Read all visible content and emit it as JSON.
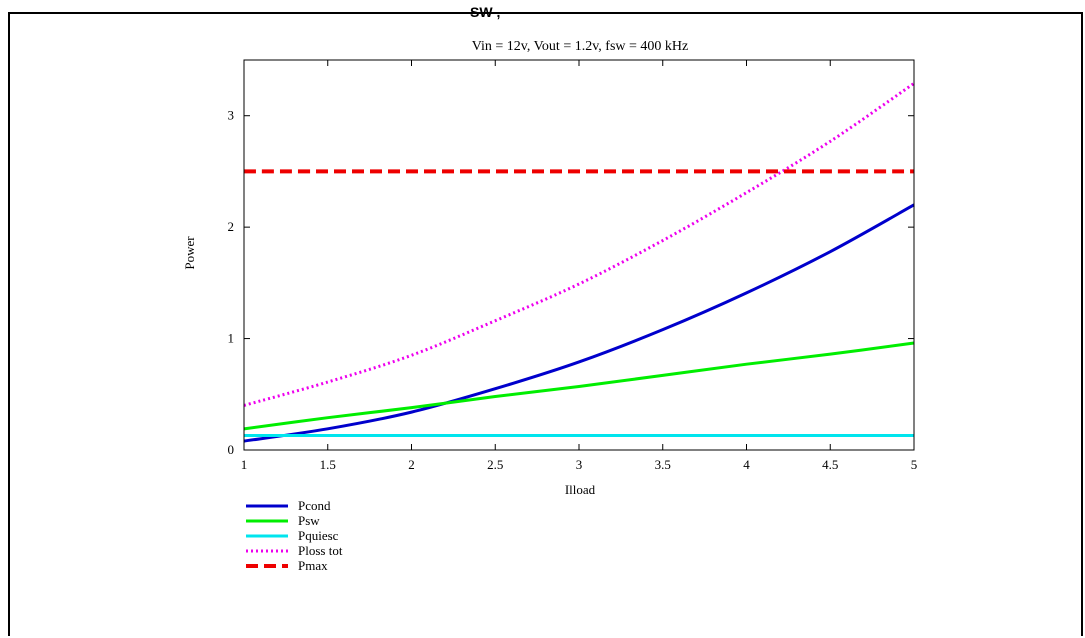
{
  "clipped_heading": "SW          ,",
  "chart_data": {
    "type": "line",
    "title": "Vin = 12v, Vout = 1.2v, fsw = 400 kHz",
    "xlabel": "Ilload",
    "ylabel": "Power",
    "xlim": [
      1,
      5
    ],
    "ylim": [
      0,
      3.5
    ],
    "x_ticks": [
      "1",
      "1.5",
      "2",
      "2.5",
      "3",
      "3.5",
      "4",
      "4.5",
      "5"
    ],
    "y_ticks": [
      "0",
      "1",
      "2",
      "3"
    ],
    "grid": false,
    "legend_position": "bottom-left",
    "x": [
      1,
      1.5,
      2,
      2.5,
      3,
      3.5,
      4,
      4.5,
      5
    ],
    "series": [
      {
        "name": "Pcond",
        "color": "#0000cc",
        "style": "solid",
        "values": [
          0.08,
          0.19,
          0.34,
          0.55,
          0.79,
          1.08,
          1.41,
          1.78,
          2.2
        ]
      },
      {
        "name": "Psw",
        "color": "#00ee00",
        "style": "solid",
        "values": [
          0.19,
          0.29,
          0.38,
          0.48,
          0.57,
          0.67,
          0.77,
          0.86,
          0.96
        ]
      },
      {
        "name": "Pquiesc",
        "color": "#00e5ee",
        "style": "solid",
        "values": [
          0.13,
          0.13,
          0.13,
          0.13,
          0.13,
          0.13,
          0.13,
          0.13,
          0.13
        ]
      },
      {
        "name": "Ploss tot",
        "color": "#ee00ee",
        "style": "dotted",
        "values": [
          0.4,
          0.61,
          0.85,
          1.16,
          1.49,
          1.88,
          2.31,
          2.77,
          3.29
        ]
      },
      {
        "name": "Pmax",
        "color": "#ee0000",
        "style": "dashed",
        "values": [
          2.5,
          2.5,
          2.5,
          2.5,
          2.5,
          2.5,
          2.5,
          2.5,
          2.5
        ]
      }
    ]
  }
}
